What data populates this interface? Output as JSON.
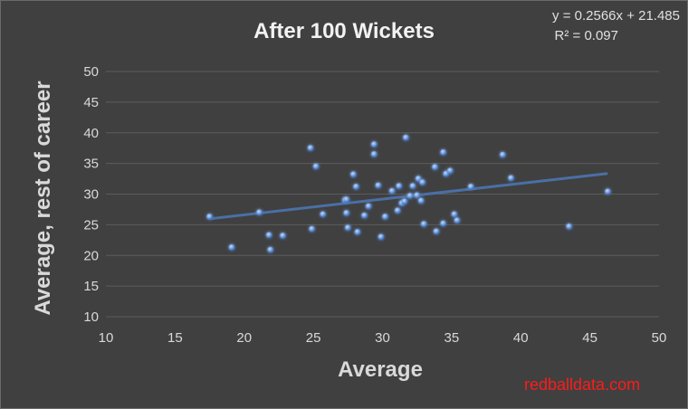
{
  "chart_data": {
    "type": "scatter",
    "title": "After 100 Wickets",
    "xlabel": "Average",
    "ylabel": "Average, rest of career",
    "xlim": [
      10,
      50
    ],
    "ylim": [
      10,
      50
    ],
    "xticks": [
      10,
      15,
      20,
      25,
      30,
      35,
      40,
      45,
      50
    ],
    "yticks": [
      10,
      15,
      20,
      25,
      30,
      35,
      40,
      45,
      50
    ],
    "grid": "horizontal",
    "trendline": {
      "slope": 0.2566,
      "intercept": 21.485,
      "x_range": [
        17.5,
        46.2
      ],
      "equation_label": "y = 0.2566x + 21.485",
      "r2_label": "R² = 0.097"
    },
    "points": [
      [
        17.5,
        26.3
      ],
      [
        19.1,
        21.3
      ],
      [
        21.1,
        27.0
      ],
      [
        21.8,
        23.3
      ],
      [
        21.9,
        20.9
      ],
      [
        22.8,
        23.2
      ],
      [
        24.8,
        37.5
      ],
      [
        24.9,
        24.3
      ],
      [
        25.2,
        34.5
      ],
      [
        25.7,
        26.7
      ],
      [
        27.3,
        29.0
      ],
      [
        27.4,
        26.9
      ],
      [
        27.4,
        29.1
      ],
      [
        27.5,
        24.5
      ],
      [
        27.9,
        33.2
      ],
      [
        28.2,
        23.8
      ],
      [
        28.1,
        31.2
      ],
      [
        28.7,
        26.5
      ],
      [
        29.0,
        28.0
      ],
      [
        29.4,
        38.1
      ],
      [
        29.4,
        36.5
      ],
      [
        29.7,
        31.4
      ],
      [
        29.9,
        23.0
      ],
      [
        30.2,
        26.3
      ],
      [
        30.7,
        30.5
      ],
      [
        31.1,
        27.3
      ],
      [
        31.2,
        31.3
      ],
      [
        31.4,
        28.5
      ],
      [
        31.6,
        28.8
      ],
      [
        31.7,
        39.2
      ],
      [
        32.0,
        29.7
      ],
      [
        32.2,
        31.3
      ],
      [
        32.5,
        29.8
      ],
      [
        32.6,
        32.5
      ],
      [
        32.8,
        28.9
      ],
      [
        32.9,
        31.9
      ],
      [
        33.0,
        25.1
      ],
      [
        33.8,
        34.4
      ],
      [
        33.9,
        23.9
      ],
      [
        34.4,
        25.2
      ],
      [
        34.4,
        36.8
      ],
      [
        34.6,
        33.3
      ],
      [
        34.9,
        33.8
      ],
      [
        35.2,
        26.7
      ],
      [
        35.4,
        25.7
      ],
      [
        36.4,
        31.2
      ],
      [
        38.7,
        36.4
      ],
      [
        39.3,
        32.6
      ],
      [
        43.5,
        24.7
      ],
      [
        46.3,
        30.4
      ]
    ],
    "colors": {
      "background": "#404040",
      "point": "#5b8fd9",
      "trendline": "#4a6fa5",
      "grid": "#5c5c5c"
    }
  },
  "watermark": "redballdata.com"
}
